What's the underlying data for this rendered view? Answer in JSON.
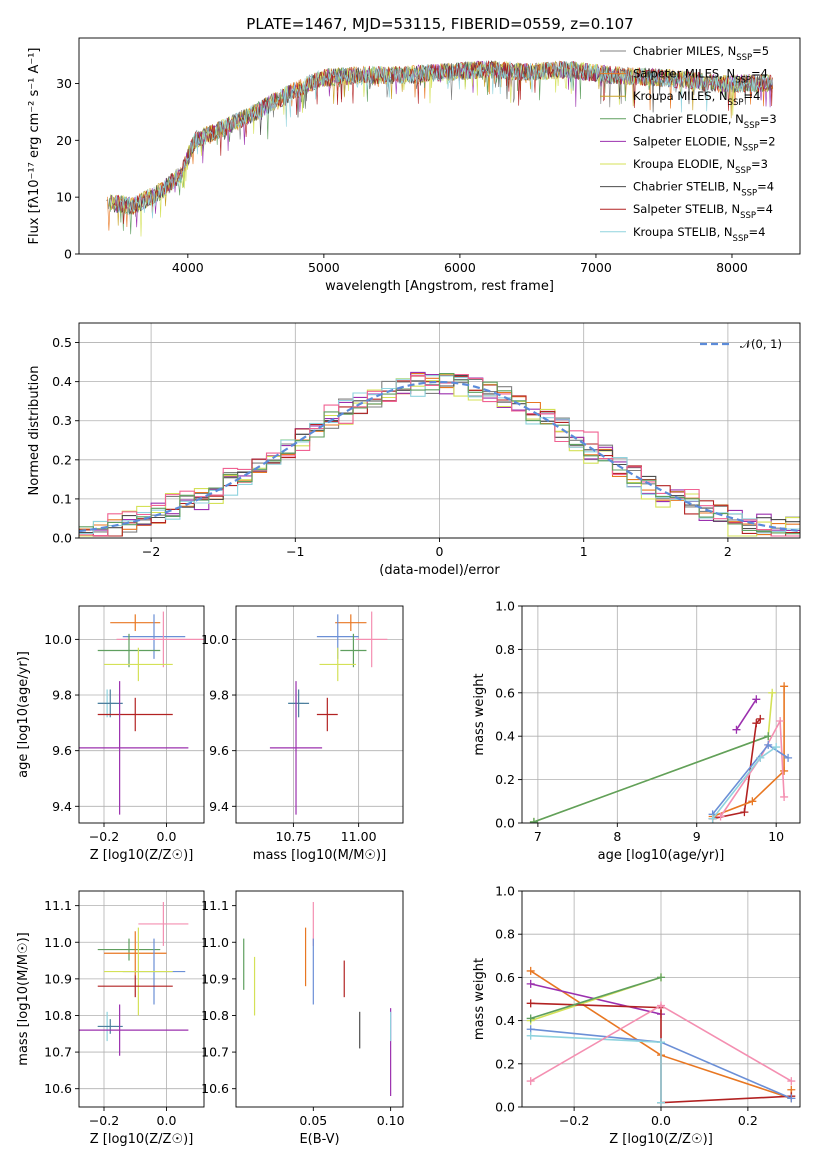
{
  "figure": {
    "title": "PLATE=1467, MJD=53115, FIBERID=0559, z=0.107"
  },
  "chart_data": [
    {
      "id": "spectrum",
      "type": "line",
      "xlabel": "wavelength [Angstrom, rest frame]",
      "ylabel": "Flux [fλ10⁻¹⁷ erg cm⁻² s⁻¹ A⁻¹]",
      "xlim": [
        3200,
        8500
      ],
      "ylim": [
        0,
        38
      ],
      "xticks": [
        4000,
        5000,
        6000,
        7000,
        8000
      ],
      "yticks": [
        0,
        10,
        20,
        30
      ],
      "legend": "upper-right",
      "envelope_x": [
        3400,
        3600,
        3800,
        3950,
        4050,
        4250,
        4500,
        4800,
        5000,
        5300,
        5600,
        5900,
        6200,
        6500,
        6800,
        7100,
        7500,
        7900,
        8300
      ],
      "envelope_y": [
        9,
        8.5,
        11,
        14,
        20,
        22,
        25,
        29,
        31,
        31.5,
        31.5,
        32,
        32.5,
        32,
        32.5,
        31.5,
        31,
        30,
        30
      ],
      "series": [
        {
          "name": "Chabrier MILES, N_SSP=5",
          "color": "#808080"
        },
        {
          "name": "Salpeter MILES, N_SSP=4",
          "color": "#e87722"
        },
        {
          "name": "Kroupa MILES, N_SSP=4",
          "color": "#c9a227"
        },
        {
          "name": "Chabrier ELODIE, N_SSP=3",
          "color": "#5f9f5f"
        },
        {
          "name": "Salpeter ELODIE, N_SSP=2",
          "color": "#9b30ae"
        },
        {
          "name": "Kroupa ELODIE, N_SSP=3",
          "color": "#d4e157"
        },
        {
          "name": "Chabrier STELIB, N_SSP=4",
          "color": "#4d4d4d"
        },
        {
          "name": "Salpeter STELIB, N_SSP=4",
          "color": "#b22222"
        },
        {
          "name": "Kroupa STELIB, N_SSP=4",
          "color": "#8fd3de"
        }
      ]
    },
    {
      "id": "residuals",
      "type": "line",
      "xlabel": "(data-model)/error",
      "ylabel": "Normed distribution",
      "xlim": [
        -2.5,
        2.5
      ],
      "ylim": [
        0,
        0.55
      ],
      "xticks": [
        -2,
        -1,
        0,
        1,
        2
      ],
      "yticks": [
        0.0,
        0.1,
        0.2,
        0.3,
        0.4,
        0.5
      ],
      "grid": true,
      "legend": "upper-right",
      "gaussian_label": "𝒩(0, 1)",
      "gaussian_color": "#5b8bd9",
      "bins": [
        -2.5,
        -2.4,
        -2.3,
        -2.2,
        -2.1,
        -2.0,
        -1.9,
        -1.8,
        -1.7,
        -1.6,
        -1.5,
        -1.4,
        -1.3,
        -1.2,
        -1.1,
        -1.0,
        -0.9,
        -0.8,
        -0.7,
        -0.6,
        -0.5,
        -0.4,
        -0.3,
        -0.2,
        -0.1,
        0.0,
        0.1,
        0.2,
        0.3,
        0.4,
        0.5,
        0.6,
        0.7,
        0.8,
        0.9,
        1.0,
        1.1,
        1.2,
        1.3,
        1.4,
        1.5,
        1.6,
        1.7,
        1.8,
        1.9,
        2.0,
        2.1,
        2.2,
        2.3,
        2.4,
        2.5
      ],
      "hist_colors": [
        "#808080",
        "#e87722",
        "#9b30ae",
        "#d4e157",
        "#4d4d4d",
        "#b22222",
        "#8fd3de",
        "#f06292",
        "#5f9f5f"
      ],
      "jitter": [
        0.034,
        0.027,
        0.03,
        0.045,
        0.022,
        0.029,
        0.033,
        0.041,
        0.026
      ]
    },
    {
      "id": "age-vs-Z",
      "type": "scatter",
      "xlabel": "Z [log10(Z/Z☉)]",
      "ylabel": "age [log10(age/yr)]",
      "xlim": [
        -0.28,
        0.12
      ],
      "ylim": [
        9.34,
        10.12
      ],
      "xticks": [
        -0.2,
        0.0
      ],
      "yticks": [
        9.4,
        9.6,
        9.8,
        10.0
      ],
      "grid": true,
      "points": [
        {
          "x": -0.1,
          "y": 10.06,
          "xe": 0.08,
          "ye": 0.03,
          "color": "#e87722"
        },
        {
          "x": -0.04,
          "y": 10.01,
          "xe": 0.1,
          "ye": 0.08,
          "color": "#6b8fd6"
        },
        {
          "x": -0.01,
          "y": 10.0,
          "xe": 0.15,
          "ye": 0.1,
          "color": "#f48fb1"
        },
        {
          "x": -0.12,
          "y": 9.96,
          "xe": 0.1,
          "ye": 0.06,
          "color": "#5f9f5f"
        },
        {
          "x": -0.09,
          "y": 9.91,
          "xe": 0.11,
          "ye": 0.06,
          "color": "#d4e157"
        },
        {
          "x": -0.19,
          "y": 9.77,
          "xe": 0.03,
          "ye": 0.05,
          "color": "#8fd3de"
        },
        {
          "x": -0.18,
          "y": 9.77,
          "xe": 0.04,
          "ye": 0.05,
          "color": "#4d7f9e"
        },
        {
          "x": -0.1,
          "y": 9.73,
          "xe": 0.12,
          "ye": 0.06,
          "color": "#b22222"
        },
        {
          "x": -0.15,
          "y": 9.61,
          "xe": 0.22,
          "ye": 0.24,
          "color": "#9b30ae"
        }
      ]
    },
    {
      "id": "age-vs-mass",
      "type": "scatter",
      "xlabel": "mass [log10(M/M☉)]",
      "ylabel": "",
      "xlim": [
        10.53,
        11.17
      ],
      "ylim": [
        9.34,
        10.12
      ],
      "xticks": [
        10.75,
        11.0
      ],
      "yticks": [
        9.4,
        9.6,
        9.8,
        10.0
      ],
      "grid": true,
      "points": [
        {
          "x": 10.97,
          "y": 10.06,
          "xe": 0.06,
          "ye": 0.03,
          "color": "#e87722"
        },
        {
          "x": 10.92,
          "y": 10.01,
          "xe": 0.08,
          "ye": 0.08,
          "color": "#6b8fd6"
        },
        {
          "x": 11.05,
          "y": 10.0,
          "xe": 0.06,
          "ye": 0.1,
          "color": "#f48fb1"
        },
        {
          "x": 10.98,
          "y": 9.96,
          "xe": 0.05,
          "ye": 0.06,
          "color": "#5f9f5f"
        },
        {
          "x": 10.92,
          "y": 9.91,
          "xe": 0.07,
          "ye": 0.06,
          "color": "#d4e157"
        },
        {
          "x": 10.76,
          "y": 9.77,
          "xe": 0.03,
          "ye": 0.05,
          "color": "#8fd3de"
        },
        {
          "x": 10.77,
          "y": 9.77,
          "xe": 0.04,
          "ye": 0.05,
          "color": "#4d7f9e"
        },
        {
          "x": 10.88,
          "y": 9.73,
          "xe": 0.04,
          "ye": 0.06,
          "color": "#b22222"
        },
        {
          "x": 10.76,
          "y": 9.61,
          "xe": 0.1,
          "ye": 0.24,
          "color": "#9b30ae"
        }
      ]
    },
    {
      "id": "weight-vs-age",
      "type": "line",
      "xlabel": "age [log10(age/yr)]",
      "ylabel": "mass weight",
      "xlim": [
        6.8,
        10.3
      ],
      "ylim": [
        0,
        1
      ],
      "xticks": [
        7,
        8,
        9,
        10
      ],
      "yticks": [
        0.0,
        0.2,
        0.4,
        0.6,
        0.8,
        1.0
      ],
      "grid": true,
      "series": [
        {
          "color": "#d4e157",
          "x": [
            6.95,
            9.9,
            9.95
          ],
          "y": [
            0.005,
            0.4,
            0.6
          ]
        },
        {
          "color": "#5f9f5f",
          "x": [
            6.95,
            9.9
          ],
          "y": [
            0.005,
            0.4
          ]
        },
        {
          "color": "#9b30ae",
          "x": [
            9.5,
            9.75
          ],
          "y": [
            0.43,
            0.57
          ]
        },
        {
          "color": "#b22222",
          "x": [
            9.2,
            9.6,
            9.75,
            9.8
          ],
          "y": [
            0.02,
            0.05,
            0.46,
            0.48
          ]
        },
        {
          "color": "#e87722",
          "x": [
            9.2,
            9.7,
            10.1,
            10.1
          ],
          "y": [
            0.03,
            0.1,
            0.24,
            0.63
          ]
        },
        {
          "color": "#f48fb1",
          "x": [
            9.3,
            9.8,
            10.05,
            10.1
          ],
          "y": [
            0.03,
            0.3,
            0.47,
            0.12
          ]
        },
        {
          "color": "#6b8fd6",
          "x": [
            9.2,
            9.9,
            10.15
          ],
          "y": [
            0.04,
            0.36,
            0.3
          ]
        },
        {
          "color": "#8fd3de",
          "x": [
            9.2,
            9.8,
            10.0
          ],
          "y": [
            0.02,
            0.3,
            0.35
          ]
        }
      ]
    },
    {
      "id": "mass-vs-Z",
      "type": "scatter",
      "xlabel": "Z [log10(Z/Z☉)]",
      "ylabel": "mass [log10(M/M☉)]",
      "xlim": [
        -0.28,
        0.12
      ],
      "ylim": [
        10.55,
        11.14
      ],
      "xticks": [
        -0.2,
        0.0
      ],
      "yticks": [
        10.6,
        10.7,
        10.8,
        10.9,
        11.0,
        11.1
      ],
      "grid": true,
      "points": [
        {
          "x": -0.01,
          "y": 11.05,
          "xe": 0.08,
          "ye": 0.06,
          "color": "#f48fb1"
        },
        {
          "x": -0.12,
          "y": 10.98,
          "xe": 0.1,
          "ye": 0.03,
          "color": "#5f9f5f"
        },
        {
          "x": -0.1,
          "y": 10.97,
          "xe": 0.1,
          "ye": 0.06,
          "color": "#e87722"
        },
        {
          "x": -0.04,
          "y": 10.92,
          "xe": 0.1,
          "ye": 0.09,
          "color": "#6b8fd6"
        },
        {
          "x": -0.09,
          "y": 10.92,
          "xe": 0.11,
          "ye": 0.12,
          "color": "#d4e157"
        },
        {
          "x": -0.1,
          "y": 10.88,
          "xe": 0.12,
          "ye": 0.03,
          "color": "#b22222"
        },
        {
          "x": -0.19,
          "y": 10.77,
          "xe": 0.03,
          "ye": 0.04,
          "color": "#8fd3de"
        },
        {
          "x": -0.18,
          "y": 10.77,
          "xe": 0.04,
          "ye": 0.02,
          "color": "#4d7f9e"
        },
        {
          "x": -0.15,
          "y": 10.76,
          "xe": 0.22,
          "ye": 0.07,
          "color": "#9b30ae"
        }
      ]
    },
    {
      "id": "mass-vs-EBV",
      "type": "scatter",
      "xlabel": "E(B-V)",
      "ylabel": "",
      "xlim": [
        0.0,
        0.108
      ],
      "ylim": [
        10.55,
        11.14
      ],
      "xticks": [
        0.05,
        0.1
      ],
      "yticks": [
        10.6,
        10.7,
        10.8,
        10.9,
        11.0,
        11.1
      ],
      "grid": false,
      "points": [
        {
          "x": 0.005,
          "y": 10.94,
          "xe": 0,
          "ye": 0.07,
          "color": "#5f9f5f"
        },
        {
          "x": 0.012,
          "y": 10.88,
          "xe": 0,
          "ye": 0.08,
          "color": "#d4e157"
        },
        {
          "x": 0.045,
          "y": 10.96,
          "xe": 0,
          "ye": 0.08,
          "color": "#e87722"
        },
        {
          "x": 0.05,
          "y": 11.05,
          "xe": 0,
          "ye": 0.06,
          "color": "#f48fb1"
        },
        {
          "x": 0.05,
          "y": 10.92,
          "xe": 0,
          "ye": 0.09,
          "color": "#6b8fd6"
        },
        {
          "x": 0.07,
          "y": 10.9,
          "xe": 0,
          "ye": 0.05,
          "color": "#b22222"
        },
        {
          "x": 0.08,
          "y": 10.76,
          "xe": 0,
          "ye": 0.05,
          "color": "#4d4d4d"
        },
        {
          "x": 0.1,
          "y": 10.7,
          "xe": 0,
          "ye": 0.12,
          "color": "#9b30ae"
        },
        {
          "x": 0.1,
          "y": 10.77,
          "xe": 0,
          "ye": 0.04,
          "color": "#8fd3de"
        }
      ]
    },
    {
      "id": "weight-vs-Z",
      "type": "line",
      "xlabel": "Z [log10(Z/Z☉)]",
      "ylabel": "mass weight",
      "xlim": [
        -0.32,
        0.32
      ],
      "ylim": [
        0,
        1
      ],
      "xticks": [
        -0.2,
        0.0,
        0.2
      ],
      "yticks": [
        0.0,
        0.2,
        0.4,
        0.6,
        0.8,
        1.0
      ],
      "grid": true,
      "series": [
        {
          "color": "#e87722",
          "x": [
            -0.3,
            0.0,
            0.3,
            0.3
          ],
          "y": [
            0.63,
            0.24,
            0.04,
            0.08
          ]
        },
        {
          "color": "#9b30ae",
          "x": [
            -0.3,
            0.0
          ],
          "y": [
            0.57,
            0.43
          ]
        },
        {
          "color": "#d4e157",
          "x": [
            -0.3,
            0.0
          ],
          "y": [
            0.4,
            0.6
          ]
        },
        {
          "color": "#b22222",
          "x": [
            -0.3,
            0.0,
            0.0,
            0.3
          ],
          "y": [
            0.48,
            0.46,
            0.02,
            0.05
          ]
        },
        {
          "color": "#6b8fd6",
          "x": [
            -0.3,
            0.0,
            0.3
          ],
          "y": [
            0.36,
            0.3,
            0.04
          ]
        },
        {
          "color": "#8fd3de",
          "x": [
            -0.3,
            0.0,
            0.0
          ],
          "y": [
            0.33,
            0.3,
            0.02
          ]
        },
        {
          "color": "#5f9f5f",
          "x": [
            -0.3,
            0.0
          ],
          "y": [
            0.41,
            0.6
          ]
        },
        {
          "color": "#f48fb1",
          "x": [
            -0.3,
            0.0,
            0.3
          ],
          "y": [
            0.12,
            0.47,
            0.12
          ]
        }
      ]
    }
  ]
}
